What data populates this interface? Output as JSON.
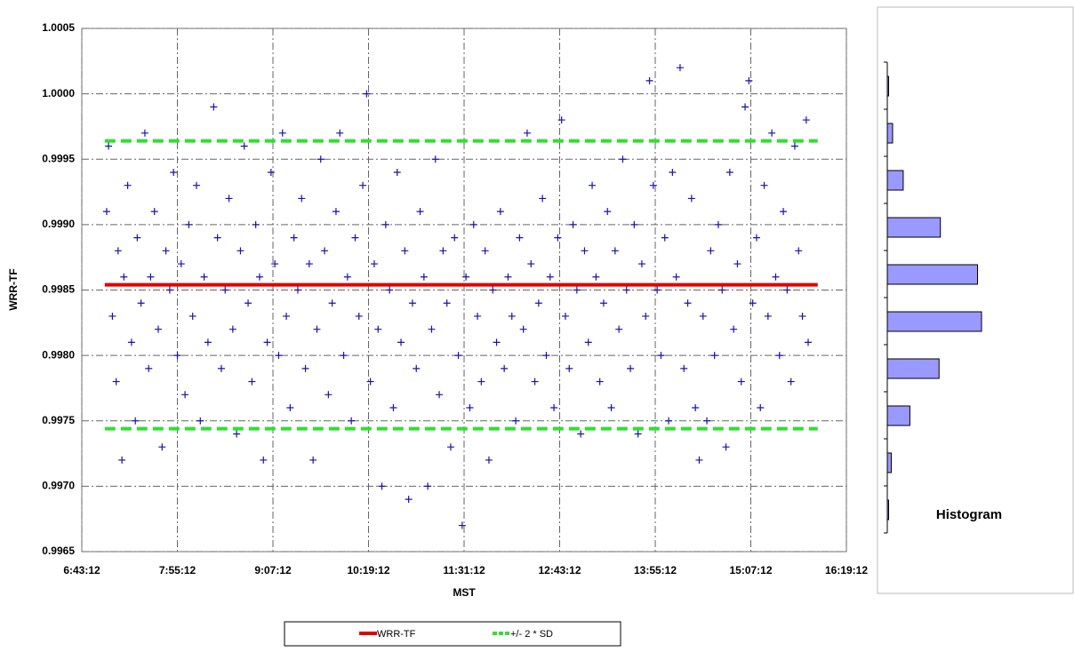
{
  "chart_data": [
    {
      "type": "scatter",
      "y_label": "WRR-TF",
      "x_label": "MST",
      "xlim": [
        0.28,
        0.68
      ],
      "xticks": [
        {
          "value": 0.28,
          "label": "6:43:12"
        },
        {
          "value": 0.33,
          "label": "7:55:12"
        },
        {
          "value": 0.38,
          "label": "9:07:12"
        },
        {
          "value": 0.43,
          "label": "10:19:12"
        },
        {
          "value": 0.48,
          "label": "11:31:12"
        },
        {
          "value": 0.53,
          "label": "12:43:12"
        },
        {
          "value": 0.58,
          "label": "13:55:12"
        },
        {
          "value": 0.63,
          "label": "15:07:12"
        },
        {
          "value": 0.68,
          "label": "16:19:12"
        }
      ],
      "ylim": [
        0.9965,
        1.0005
      ],
      "yticks": [
        0.9965,
        {
          "value": 0.997,
          "label": "0.9970"
        },
        0.9975,
        {
          "value": 0.998,
          "label": "0.9980"
        },
        0.9985,
        {
          "value": 0.999,
          "label": "0.9990"
        },
        0.9995,
        {
          "value": 1,
          "label": "1.0000"
        },
        1.0005
      ],
      "grid": true,
      "points": {
        "color": "#1414a8",
        "x": [
          0.293,
          0.294,
          0.296,
          0.298,
          0.299,
          0.301,
          0.302,
          0.304,
          0.306,
          0.308,
          0.309,
          0.311,
          0.313,
          0.315,
          0.316,
          0.318,
          0.32,
          0.322,
          0.324,
          0.326,
          0.328,
          0.33,
          0.332,
          0.334,
          0.336,
          0.338,
          0.34,
          0.342,
          0.344,
          0.346,
          0.349,
          0.351,
          0.353,
          0.355,
          0.357,
          0.359,
          0.361,
          0.363,
          0.365,
          0.367,
          0.369,
          0.371,
          0.373,
          0.375,
          0.377,
          0.379,
          0.381,
          0.383,
          0.385,
          0.387,
          0.389,
          0.391,
          0.393,
          0.395,
          0.397,
          0.399,
          0.401,
          0.403,
          0.405,
          0.407,
          0.409,
          0.411,
          0.413,
          0.415,
          0.417,
          0.419,
          0.421,
          0.423,
          0.425,
          0.427,
          0.429,
          0.431,
          0.433,
          0.435,
          0.437,
          0.439,
          0.441,
          0.443,
          0.445,
          0.447,
          0.449,
          0.451,
          0.453,
          0.455,
          0.457,
          0.459,
          0.461,
          0.463,
          0.465,
          0.467,
          0.469,
          0.471,
          0.473,
          0.475,
          0.477,
          0.479,
          0.481,
          0.483,
          0.485,
          0.487,
          0.489,
          0.491,
          0.493,
          0.495,
          0.497,
          0.499,
          0.501,
          0.503,
          0.505,
          0.507,
          0.509,
          0.511,
          0.513,
          0.515,
          0.517,
          0.519,
          0.521,
          0.523,
          0.525,
          0.527,
          0.529,
          0.531,
          0.533,
          0.535,
          0.537,
          0.539,
          0.541,
          0.543,
          0.545,
          0.547,
          0.549,
          0.551,
          0.553,
          0.555,
          0.557,
          0.559,
          0.561,
          0.563,
          0.565,
          0.567,
          0.569,
          0.571,
          0.573,
          0.575,
          0.577,
          0.579,
          0.581,
          0.583,
          0.585,
          0.587,
          0.589,
          0.591,
          0.593,
          0.595,
          0.597,
          0.599,
          0.601,
          0.603,
          0.605,
          0.607,
          0.609,
          0.611,
          0.613,
          0.615,
          0.617,
          0.619,
          0.621,
          0.623,
          0.625,
          0.627,
          0.629,
          0.631,
          0.633,
          0.635,
          0.637,
          0.639,
          0.641,
          0.643,
          0.645,
          0.647,
          0.649,
          0.651,
          0.653,
          0.655,
          0.657,
          0.659,
          0.66
        ],
        "values": [
          0.9991,
          0.9996,
          0.9983,
          0.9978,
          0.9988,
          0.9972,
          0.9986,
          0.9993,
          0.9981,
          0.9975,
          0.9989,
          0.9984,
          0.9997,
          0.9979,
          0.9986,
          0.9991,
          0.9982,
          0.9973,
          0.9988,
          0.9985,
          0.9994,
          0.998,
          0.9987,
          0.9977,
          0.999,
          0.9983,
          0.9993,
          0.9975,
          0.9986,
          0.9981,
          0.9999,
          0.9989,
          0.9979,
          0.9985,
          0.9992,
          0.9982,
          0.9974,
          0.9988,
          0.9996,
          0.9984,
          0.9978,
          0.999,
          0.9986,
          0.9972,
          0.9981,
          0.9994,
          0.9987,
          0.998,
          0.9997,
          0.9983,
          0.9976,
          0.9989,
          0.9985,
          0.9992,
          0.9979,
          0.9987,
          0.9972,
          0.9982,
          0.9995,
          0.9988,
          0.9977,
          0.9984,
          0.9991,
          0.9997,
          0.998,
          0.9986,
          0.9975,
          0.9989,
          0.9983,
          0.9993,
          1.0,
          0.9978,
          0.9987,
          0.9982,
          0.997,
          0.999,
          0.9985,
          0.9976,
          0.9994,
          0.9981,
          0.9988,
          0.9969,
          0.9984,
          0.9979,
          0.9991,
          0.9986,
          0.997,
          0.9982,
          0.9995,
          0.9977,
          0.9988,
          0.9984,
          0.9973,
          0.9989,
          0.998,
          0.9967,
          0.9986,
          0.9976,
          0.999,
          0.9983,
          0.9978,
          0.9988,
          0.9972,
          0.9985,
          0.9981,
          0.9991,
          0.9979,
          0.9986,
          0.9983,
          0.9975,
          0.9989,
          0.9982,
          0.9997,
          0.9987,
          0.9978,
          0.9984,
          0.9992,
          0.998,
          0.9986,
          0.9976,
          0.9989,
          0.9998,
          0.9983,
          0.9979,
          0.999,
          0.9985,
          0.9974,
          0.9988,
          0.9981,
          0.9993,
          0.9986,
          0.9978,
          0.9984,
          0.9991,
          0.9976,
          0.9988,
          0.9982,
          0.9995,
          0.9985,
          0.9979,
          0.999,
          0.9974,
          0.9987,
          0.9983,
          1.0001,
          0.9993,
          0.9985,
          0.998,
          0.9989,
          0.9975,
          0.9994,
          0.9986,
          1.0002,
          0.9979,
          0.9984,
          0.9992,
          0.9976,
          0.9972,
          0.9983,
          0.9975,
          0.9988,
          0.998,
          0.999,
          0.9985,
          0.9973,
          0.9994,
          0.9982,
          0.9987,
          0.9978,
          0.9999,
          1.0001,
          0.9984,
          0.9989,
          0.9976,
          0.9993,
          0.9983,
          0.9997,
          0.9986,
          0.998,
          0.9991,
          0.9985,
          0.9978,
          0.9996,
          0.9988,
          0.9983,
          0.9998,
          0.9981
        ]
      },
      "series": [
        {
          "name": "WRR-TF",
          "color": "#e00000",
          "x": [
            0.292,
            0.665
          ],
          "values": [
            0.99854,
            0.99854
          ]
        },
        {
          "name": "+/- 2 * SD",
          "color": "#33dd33",
          "x": [
            0.292,
            0.665,
            null,
            0.292,
            0.665
          ],
          "values": [
            0.99964,
            0.99964,
            null,
            0.99744,
            0.99744
          ]
        }
      ]
    },
    {
      "type": "hbar",
      "title": "Histogram",
      "color": "#9999ff",
      "categories": [
        null,
        null,
        null,
        null,
        null,
        null,
        null,
        null,
        null,
        null
      ],
      "values": [
        1,
        4,
        12,
        40,
        68,
        71,
        39,
        17,
        3,
        1
      ]
    }
  ]
}
